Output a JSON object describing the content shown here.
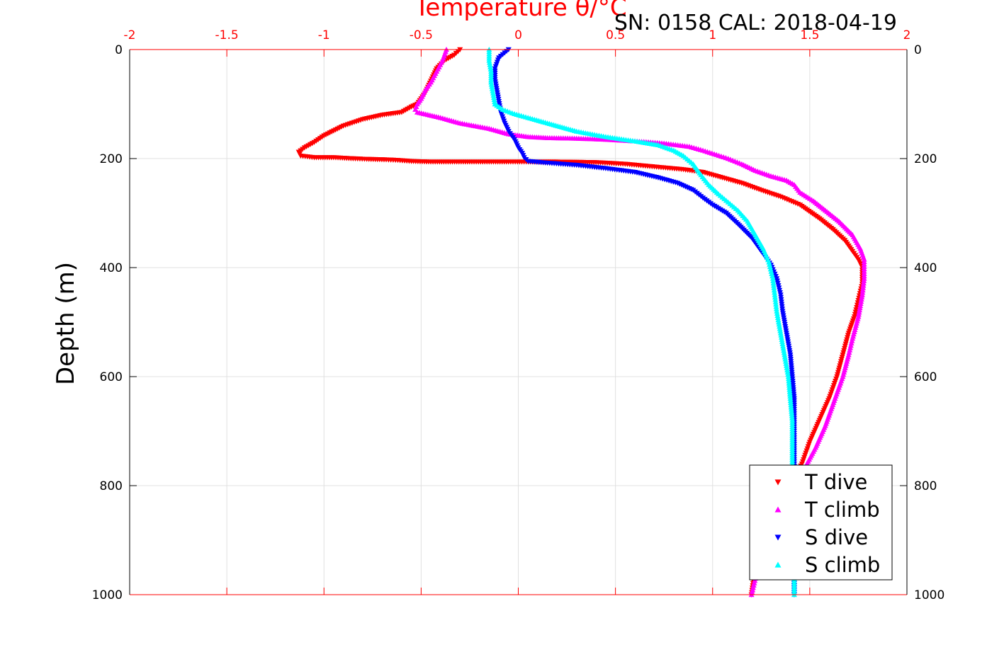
{
  "chart_data": {
    "type": "scatter",
    "title": "SN: 0158  CAL: 2018-04-19",
    "xlabel": "Temperature θ/°C",
    "ylabel": "Depth (m)",
    "xlim": [
      -2,
      2
    ],
    "ylim": [
      0,
      1000
    ],
    "y_reversed": true,
    "x_ticks": [
      "-2",
      "-1.5",
      "-1",
      "-0.5",
      "0",
      "0.5",
      "1",
      "1.5",
      "2"
    ],
    "y_ticks": [
      "0",
      "200",
      "400",
      "600",
      "800",
      "1000"
    ],
    "grid": true,
    "legend_position": "bottom-right",
    "colors": {
      "axis_x": "#ff0000",
      "axis_y": "#000000",
      "grid": "#e0e0e0"
    },
    "series": [
      {
        "name": "T dive",
        "marker": "triangle-down",
        "color": "#ff0000",
        "points": [
          [
            -0.3,
            0
          ],
          [
            -0.33,
            10
          ],
          [
            -0.38,
            20
          ],
          [
            -0.42,
            35
          ],
          [
            -0.44,
            50
          ],
          [
            -0.46,
            65
          ],
          [
            -0.48,
            80
          ],
          [
            -0.5,
            90
          ],
          [
            -0.52,
            100
          ],
          [
            -0.55,
            105
          ],
          [
            -0.6,
            115
          ],
          [
            -0.7,
            120
          ],
          [
            -0.8,
            128
          ],
          [
            -0.9,
            140
          ],
          [
            -1.0,
            158
          ],
          [
            -1.05,
            170
          ],
          [
            -1.1,
            180
          ],
          [
            -1.13,
            188
          ],
          [
            -1.12,
            195
          ],
          [
            -1.05,
            198
          ],
          [
            -0.95,
            198
          ],
          [
            -0.85,
            200
          ],
          [
            -0.78,
            201
          ],
          [
            -0.68,
            202
          ],
          [
            -0.62,
            203
          ],
          [
            -0.55,
            205
          ],
          [
            -0.45,
            206
          ],
          [
            -0.05,
            206
          ],
          [
            0.2,
            206
          ],
          [
            0.4,
            207
          ],
          [
            0.55,
            210
          ],
          [
            0.7,
            215
          ],
          [
            0.85,
            220
          ],
          [
            0.95,
            225
          ],
          [
            1.05,
            235
          ],
          [
            1.15,
            245
          ],
          [
            1.25,
            258
          ],
          [
            1.35,
            270
          ],
          [
            1.45,
            285
          ],
          [
            1.55,
            310
          ],
          [
            1.62,
            330
          ],
          [
            1.68,
            350
          ],
          [
            1.72,
            370
          ],
          [
            1.75,
            385
          ],
          [
            1.77,
            400
          ],
          [
            1.77,
            430
          ],
          [
            1.75,
            460
          ],
          [
            1.73,
            490
          ],
          [
            1.7,
            520
          ],
          [
            1.67,
            560
          ],
          [
            1.64,
            600
          ],
          [
            1.6,
            640
          ],
          [
            1.55,
            680
          ],
          [
            1.5,
            720
          ],
          [
            1.46,
            760
          ],
          [
            1.4,
            800
          ],
          [
            1.33,
            850
          ],
          [
            1.27,
            900
          ],
          [
            1.22,
            950
          ],
          [
            1.2,
            1000
          ]
        ]
      },
      {
        "name": "T climb",
        "marker": "triangle-up",
        "color": "#ff00ff",
        "points": [
          [
            -0.37,
            0
          ],
          [
            -0.39,
            20
          ],
          [
            -0.42,
            40
          ],
          [
            -0.45,
            60
          ],
          [
            -0.48,
            75
          ],
          [
            -0.5,
            90
          ],
          [
            -0.52,
            100
          ],
          [
            -0.53,
            110
          ],
          [
            -0.52,
            115
          ],
          [
            -0.4,
            125
          ],
          [
            -0.3,
            135
          ],
          [
            -0.15,
            145
          ],
          [
            -0.05,
            155
          ],
          [
            0.05,
            160
          ],
          [
            0.15,
            162
          ],
          [
            0.3,
            163
          ],
          [
            0.45,
            165
          ],
          [
            0.6,
            168
          ],
          [
            0.75,
            172
          ],
          [
            0.88,
            178
          ],
          [
            0.95,
            185
          ],
          [
            1.02,
            193
          ],
          [
            1.08,
            200
          ],
          [
            1.15,
            210
          ],
          [
            1.22,
            222
          ],
          [
            1.3,
            232
          ],
          [
            1.38,
            240
          ],
          [
            1.42,
            248
          ],
          [
            1.45,
            262
          ],
          [
            1.52,
            278
          ],
          [
            1.58,
            295
          ],
          [
            1.65,
            315
          ],
          [
            1.72,
            340
          ],
          [
            1.76,
            365
          ],
          [
            1.78,
            385
          ],
          [
            1.78,
            420
          ],
          [
            1.77,
            450
          ],
          [
            1.75,
            490
          ],
          [
            1.72,
            530
          ],
          [
            1.7,
            560
          ],
          [
            1.67,
            600
          ],
          [
            1.63,
            640
          ],
          [
            1.58,
            690
          ],
          [
            1.53,
            730
          ],
          [
            1.47,
            770
          ],
          [
            1.4,
            820
          ],
          [
            1.33,
            870
          ],
          [
            1.27,
            920
          ],
          [
            1.22,
            970
          ],
          [
            1.2,
            1000
          ]
        ]
      },
      {
        "name": "S dive",
        "marker": "triangle-down",
        "color": "#0000ff",
        "points": [
          [
            -0.05,
            0
          ],
          [
            -0.1,
            15
          ],
          [
            -0.12,
            35
          ],
          [
            -0.12,
            55
          ],
          [
            -0.11,
            75
          ],
          [
            -0.1,
            95
          ],
          [
            -0.09,
            115
          ],
          [
            -0.07,
            135
          ],
          [
            -0.05,
            150
          ],
          [
            -0.02,
            165
          ],
          [
            0.0,
            180
          ],
          [
            0.02,
            190
          ],
          [
            0.03,
            198
          ],
          [
            0.05,
            205
          ],
          [
            0.15,
            208
          ],
          [
            0.3,
            212
          ],
          [
            0.45,
            218
          ],
          [
            0.6,
            225
          ],
          [
            0.72,
            235
          ],
          [
            0.82,
            245
          ],
          [
            0.9,
            258
          ],
          [
            0.95,
            272
          ],
          [
            1.0,
            285
          ],
          [
            1.07,
            300
          ],
          [
            1.13,
            320
          ],
          [
            1.2,
            345
          ],
          [
            1.25,
            370
          ],
          [
            1.3,
            395
          ],
          [
            1.33,
            420
          ],
          [
            1.35,
            450
          ],
          [
            1.36,
            480
          ],
          [
            1.38,
            520
          ],
          [
            1.4,
            560
          ],
          [
            1.41,
            600
          ],
          [
            1.42,
            640
          ],
          [
            1.42,
            680
          ],
          [
            1.42,
            720
          ],
          [
            1.42,
            760
          ],
          [
            1.42,
            800
          ],
          [
            1.42,
            850
          ],
          [
            1.42,
            900
          ],
          [
            1.42,
            950
          ],
          [
            1.42,
            1000
          ]
        ]
      },
      {
        "name": "S climb",
        "marker": "triangle-up",
        "color": "#00ffff",
        "points": [
          [
            -0.15,
            0
          ],
          [
            -0.15,
            20
          ],
          [
            -0.14,
            40
          ],
          [
            -0.14,
            60
          ],
          [
            -0.13,
            80
          ],
          [
            -0.12,
            100
          ],
          [
            -0.08,
            110
          ],
          [
            -0.02,
            118
          ],
          [
            0.05,
            125
          ],
          [
            0.15,
            135
          ],
          [
            0.3,
            150
          ],
          [
            0.45,
            160
          ],
          [
            0.6,
            168
          ],
          [
            0.72,
            175
          ],
          [
            0.8,
            185
          ],
          [
            0.85,
            195
          ],
          [
            0.9,
            210
          ],
          [
            0.94,
            230
          ],
          [
            0.98,
            248
          ],
          [
            1.03,
            265
          ],
          [
            1.08,
            280
          ],
          [
            1.13,
            295
          ],
          [
            1.18,
            315
          ],
          [
            1.22,
            340
          ],
          [
            1.26,
            365
          ],
          [
            1.29,
            390
          ],
          [
            1.31,
            420
          ],
          [
            1.32,
            450
          ],
          [
            1.33,
            480
          ],
          [
            1.35,
            520
          ],
          [
            1.37,
            560
          ],
          [
            1.39,
            600
          ],
          [
            1.4,
            640
          ],
          [
            1.41,
            680
          ],
          [
            1.41,
            720
          ],
          [
            1.41,
            760
          ],
          [
            1.42,
            800
          ],
          [
            1.42,
            850
          ],
          [
            1.42,
            900
          ],
          [
            1.42,
            950
          ],
          [
            1.42,
            1000
          ]
        ]
      }
    ]
  }
}
